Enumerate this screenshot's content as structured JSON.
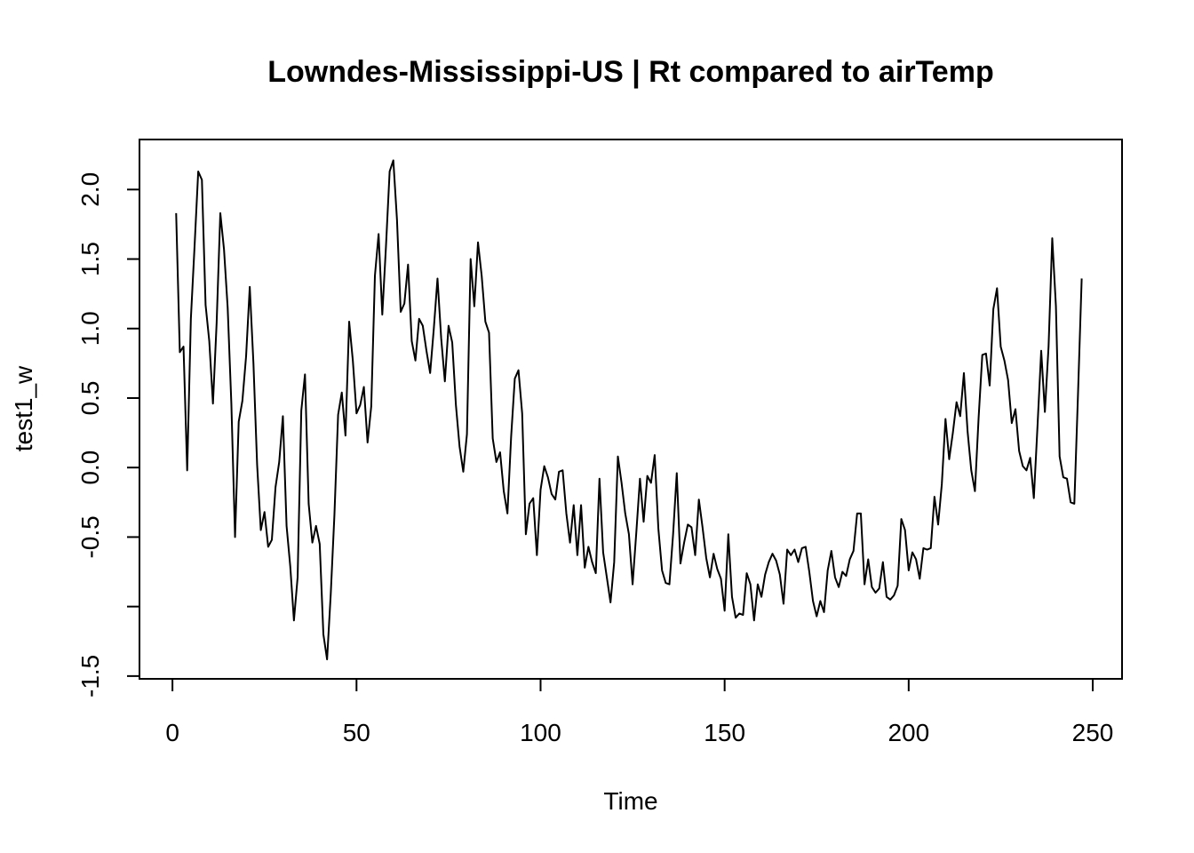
{
  "chart_data": {
    "type": "line",
    "title": "Lowndes-Mississippi-US | Rt compared to airTemp",
    "xlabel": "Time",
    "ylabel": "test1_w",
    "xlim": [
      -8.96,
      257.96
    ],
    "ylim": [
      -1.52,
      2.36
    ],
    "x_ticks": [
      0,
      50,
      100,
      150,
      200,
      250
    ],
    "x_tick_labels": [
      "0",
      "50",
      "100",
      "150",
      "200",
      "250"
    ],
    "y_ticks": [
      -1.5,
      -1.0,
      -0.5,
      0.0,
      0.5,
      1.0,
      1.5,
      2.0
    ],
    "y_tick_labels": [
      "-1.5",
      "",
      "-0.5",
      "0.0",
      "0.5",
      "1.0",
      "1.5",
      "2.0"
    ],
    "grid": false,
    "legend": false,
    "line_color": "#000000",
    "series": [
      {
        "x_start": 1,
        "values": [
          1.83,
          0.83,
          0.87,
          -0.02,
          1.07,
          1.59,
          2.13,
          2.07,
          1.17,
          0.91,
          0.46,
          1.04,
          1.83,
          1.57,
          1.15,
          0.46,
          -0.5,
          0.33,
          0.48,
          0.8,
          1.3,
          0.75,
          0.02,
          -0.45,
          -0.32,
          -0.57,
          -0.52,
          -0.14,
          0.04,
          0.37,
          -0.42,
          -0.71,
          -1.1,
          -0.79,
          0.41,
          0.67,
          -0.26,
          -0.54,
          -0.42,
          -0.55,
          -1.2,
          -1.38,
          -0.91,
          -0.34,
          0.38,
          0.54,
          0.23,
          1.05,
          0.77,
          0.39,
          0.45,
          0.58,
          0.18,
          0.44,
          1.38,
          1.68,
          1.1,
          1.59,
          2.13,
          2.21,
          1.78,
          1.12,
          1.18,
          1.46,
          0.91,
          0.77,
          1.07,
          1.02,
          0.84,
          0.68,
          1.0,
          1.36,
          0.93,
          0.62,
          1.02,
          0.9,
          0.45,
          0.15,
          -0.03,
          0.24,
          1.5,
          1.16,
          1.62,
          1.38,
          1.05,
          0.97,
          0.21,
          0.04,
          0.11,
          -0.17,
          -0.33,
          0.22,
          0.64,
          0.7,
          0.39,
          -0.48,
          -0.26,
          -0.22,
          -0.63,
          -0.16,
          0.01,
          -0.07,
          -0.19,
          -0.23,
          -0.03,
          -0.02,
          -0.33,
          -0.54,
          -0.27,
          -0.63,
          -0.27,
          -0.72,
          -0.57,
          -0.68,
          -0.76,
          -0.08,
          -0.61,
          -0.79,
          -0.97,
          -0.68,
          0.08,
          -0.11,
          -0.33,
          -0.48,
          -0.84,
          -0.47,
          -0.08,
          -0.39,
          -0.06,
          -0.11,
          0.09,
          -0.44,
          -0.74,
          -0.83,
          -0.84,
          -0.48,
          -0.04,
          -0.69,
          -0.54,
          -0.41,
          -0.43,
          -0.63,
          -0.23,
          -0.43,
          -0.65,
          -0.79,
          -0.62,
          -0.73,
          -0.8,
          -1.03,
          -0.48,
          -0.93,
          -1.08,
          -1.05,
          -1.06,
          -0.76,
          -0.84,
          -1.1,
          -0.84,
          -0.93,
          -0.77,
          -0.68,
          -0.62,
          -0.67,
          -0.77,
          -0.98,
          -0.59,
          -0.63,
          -0.59,
          -0.68,
          -0.58,
          -0.57,
          -0.75,
          -0.96,
          -1.07,
          -0.96,
          -1.04,
          -0.74,
          -0.6,
          -0.79,
          -0.86,
          -0.75,
          -0.78,
          -0.66,
          -0.6,
          -0.33,
          -0.33,
          -0.84,
          -0.66,
          -0.86,
          -0.9,
          -0.87,
          -0.68,
          -0.93,
          -0.95,
          -0.92,
          -0.85,
          -0.37,
          -0.45,
          -0.74,
          -0.61,
          -0.66,
          -0.8,
          -0.58,
          -0.59,
          -0.58,
          -0.21,
          -0.41,
          -0.12,
          0.35,
          0.06,
          0.25,
          0.47,
          0.37,
          0.68,
          0.26,
          -0.02,
          -0.17,
          0.36,
          0.81,
          0.82,
          0.59,
          1.14,
          1.29,
          0.87,
          0.77,
          0.63,
          0.32,
          0.42,
          0.12,
          0.01,
          -0.02,
          0.07,
          -0.22,
          0.3,
          0.84,
          0.4,
          0.87,
          1.65,
          1.16,
          0.08,
          -0.07,
          -0.08,
          -0.25,
          -0.26,
          0.53,
          1.36
        ]
      }
    ]
  }
}
